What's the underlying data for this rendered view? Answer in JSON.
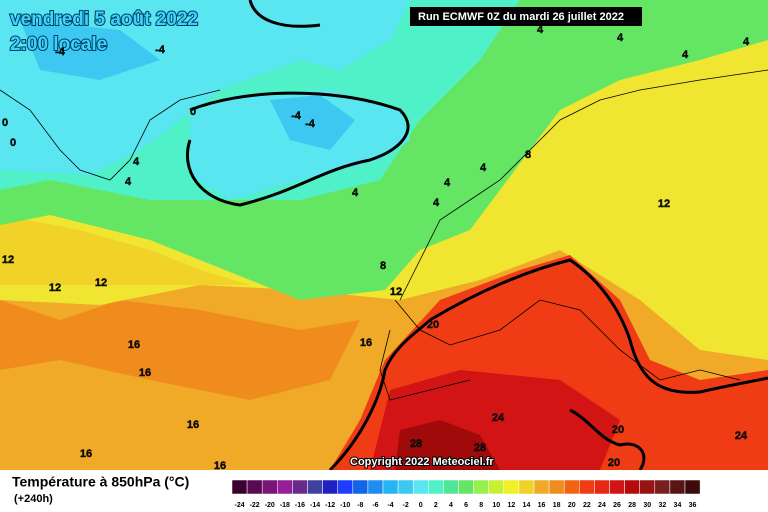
{
  "map": {
    "title": "vendredi 5 août 2022",
    "subtitle": "2:00 locale",
    "run": "Run ECMWF 0Z du mardi 26 juillet 2022",
    "copyright": "Copyright 2022 Meteociel.fr",
    "contour_labels": [
      -4,
      -4,
      0,
      0,
      0,
      -4,
      -4,
      4,
      4,
      4,
      4,
      4,
      4,
      8,
      4,
      4,
      4,
      4,
      12,
      12,
      12,
      12,
      8,
      12,
      16,
      16,
      16,
      20,
      16,
      16,
      16,
      24,
      28,
      28,
      20,
      20,
      24
    ]
  },
  "legend": {
    "title": "Température à 850hPa (°C)",
    "lead_time": "(+240h)",
    "ticks": [
      -24,
      -22,
      -20,
      -18,
      -16,
      -14,
      -12,
      -10,
      -8,
      -6,
      -4,
      -2,
      0,
      2,
      4,
      6,
      8,
      10,
      12,
      14,
      16,
      18,
      20,
      22,
      24,
      26,
      28,
      30,
      32,
      34,
      36
    ],
    "colors": [
      "#3a0030",
      "#5a0a50",
      "#7a1478",
      "#961e96",
      "#6a2a8a",
      "#4040a0",
      "#2020c0",
      "#1e3cff",
      "#1464e6",
      "#1e8cf0",
      "#28b4f0",
      "#3cc8f0",
      "#5ae6f0",
      "#50f0c8",
      "#50e696",
      "#64e664",
      "#96f050",
      "#c8f032",
      "#f0f028",
      "#f0d228",
      "#f0aa28",
      "#f08c1e",
      "#f06414",
      "#f03c14",
      "#e62814",
      "#d21414",
      "#b40a0a",
      "#961414",
      "#781e1e",
      "#5a1414",
      "#3c0a0a"
    ]
  }
}
